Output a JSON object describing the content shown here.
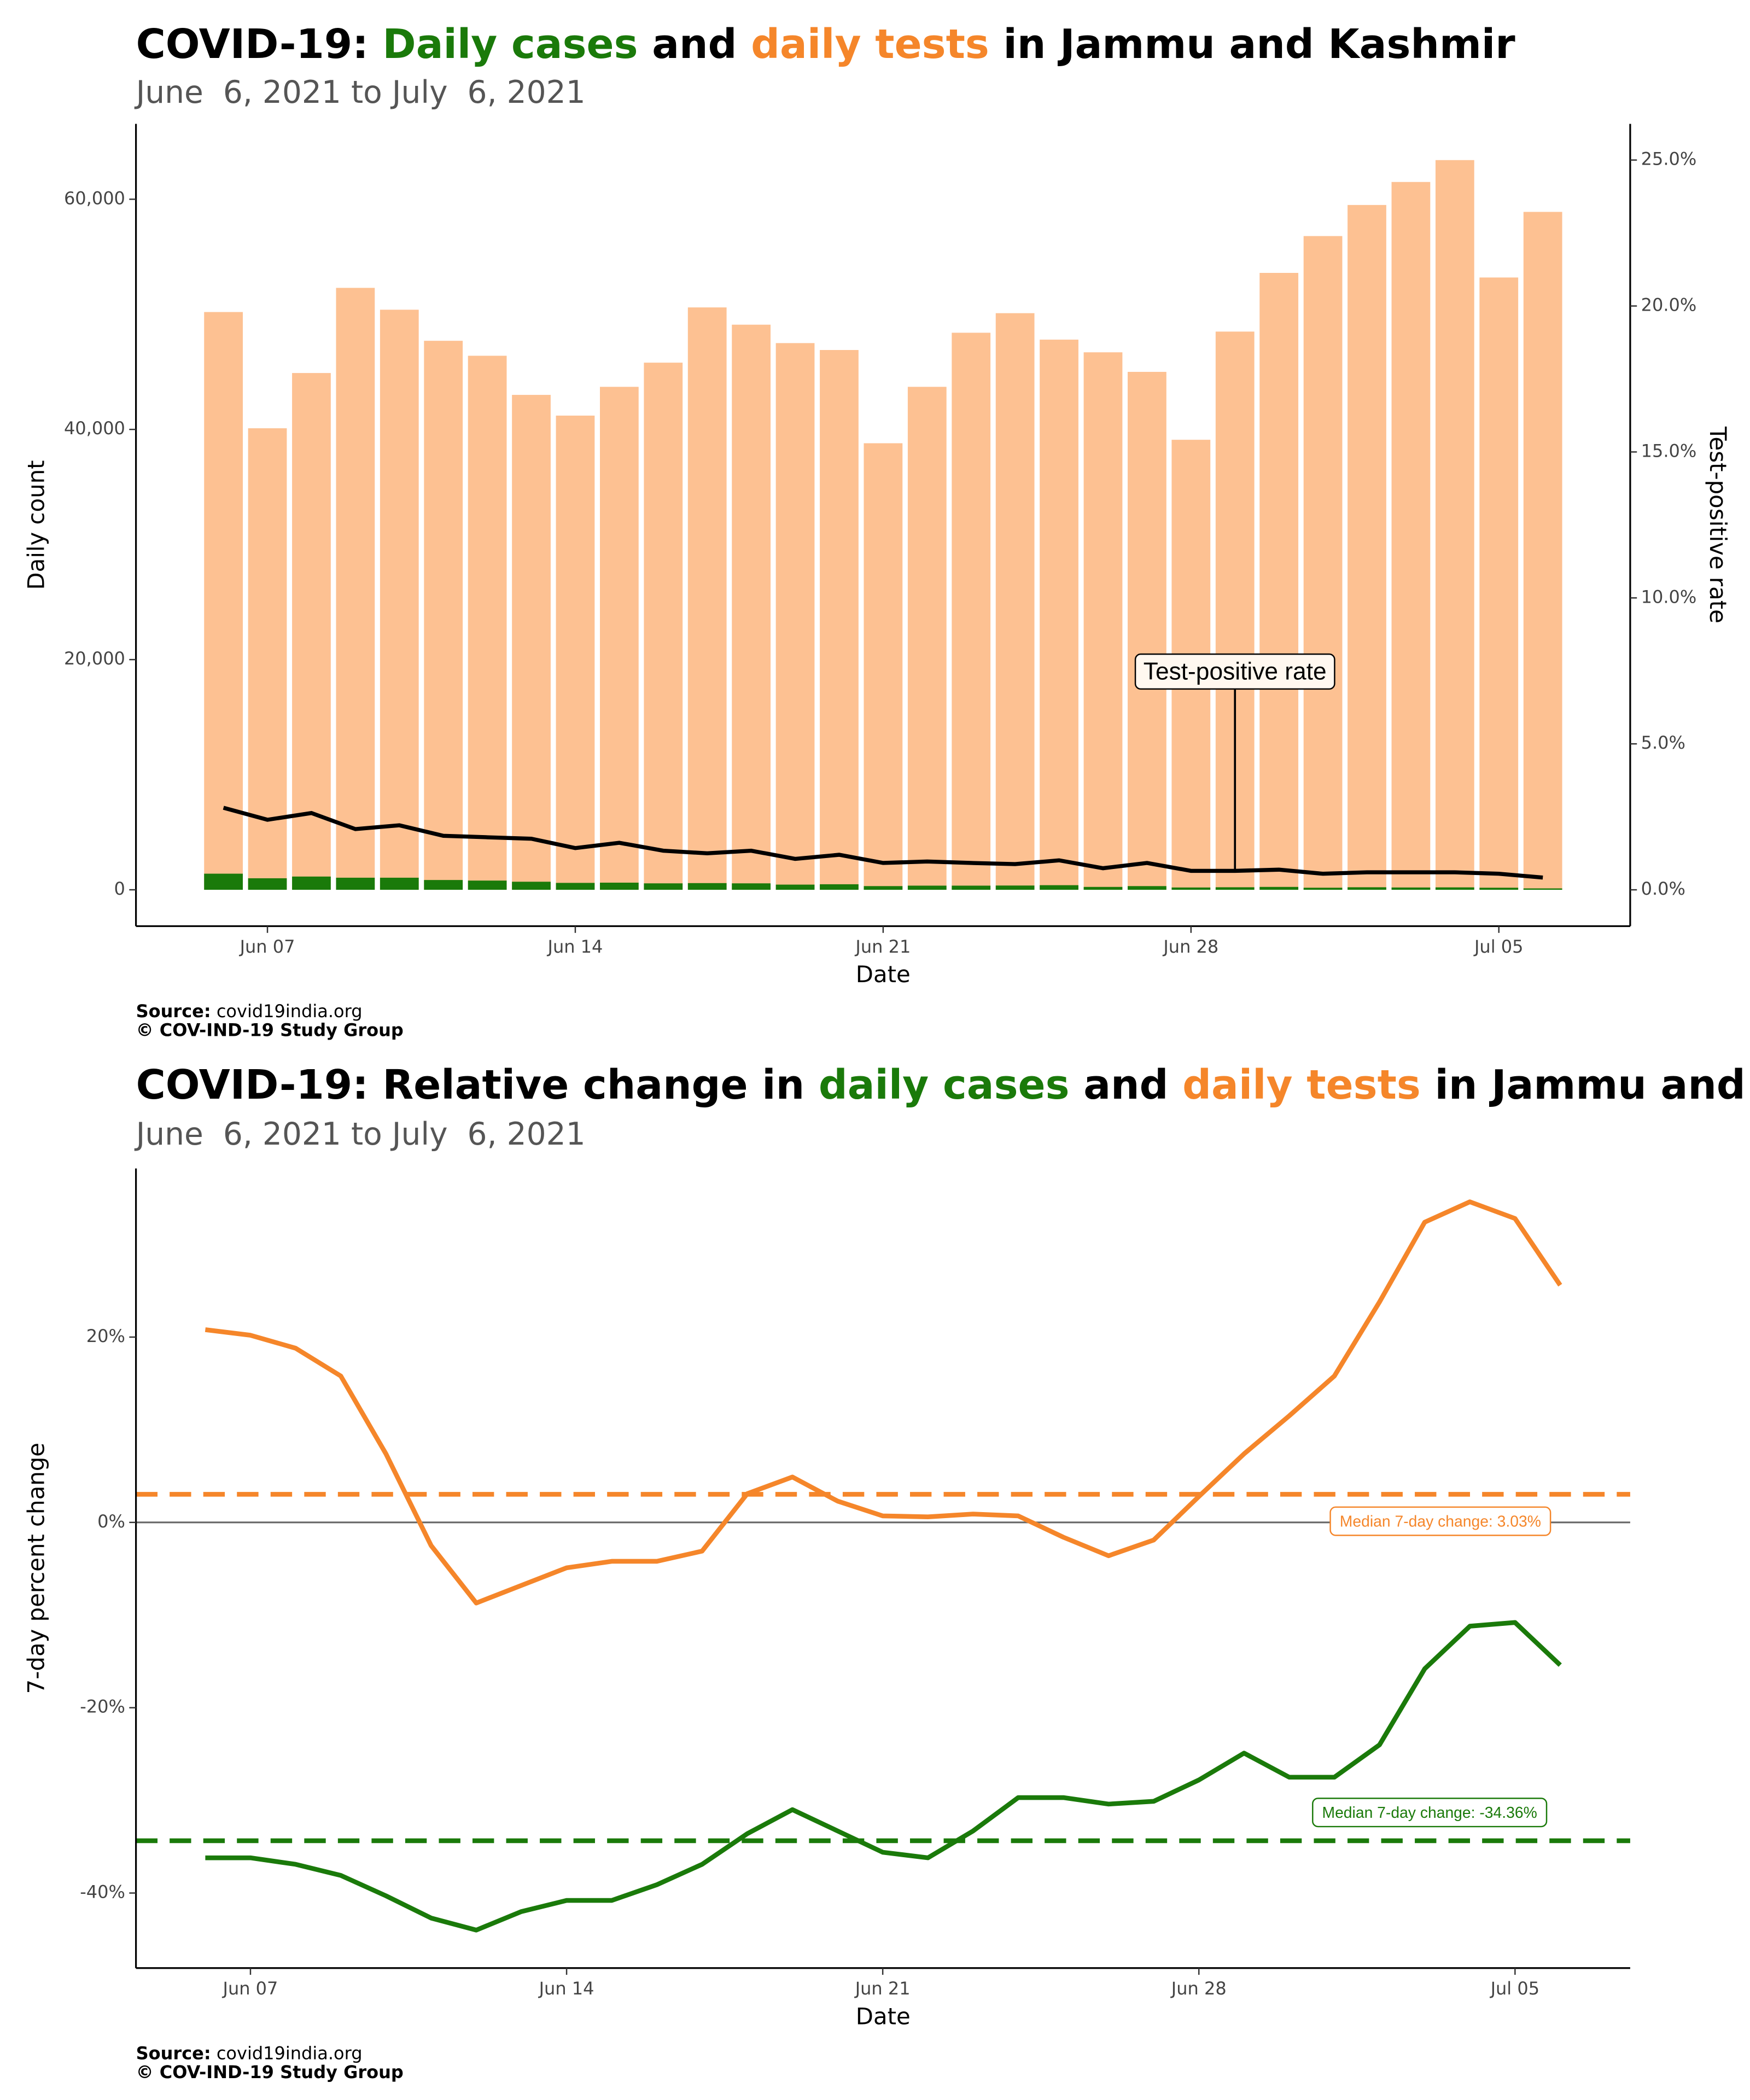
{
  "chart_data": [
    {
      "type": "bar",
      "title_parts": [
        "COVID-19: ",
        "Daily cases",
        " and ",
        "daily tests",
        " in Jammu and Kashmir"
      ],
      "title_colors": [
        "#000000",
        "#1a7a0a",
        "#000000",
        "#f5862a",
        "#000000"
      ],
      "subtitle": "June  6, 2021 to July  6, 2021",
      "x_label": "Date",
      "y_label": "Daily count",
      "y2_label": "Test-positive rate",
      "categories": [
        null,
        "Jun 07",
        null,
        null,
        null,
        null,
        null,
        null,
        "Jun 14",
        null,
        null,
        null,
        null,
        null,
        null,
        "Jun 21",
        null,
        null,
        null,
        null,
        null,
        null,
        "Jun 28",
        null,
        null,
        null,
        null,
        null,
        null,
        "Jul 05",
        null
      ],
      "series": [
        {
          "style": "bar",
          "color": "#fdc192",
          "values": [
            50200,
            40100,
            44900,
            52300,
            50400,
            47700,
            46400,
            43000,
            41200,
            43700,
            45800,
            50600,
            49100,
            47500,
            46900,
            38800,
            43700,
            48400,
            50100,
            47800,
            46700,
            45000,
            39100,
            48500,
            53600,
            56800,
            59500,
            61500,
            63400,
            53200,
            58900
          ]
        },
        {
          "style": "bar",
          "color": "#1a7a0a",
          "values": [
            1400,
            1000,
            1150,
            1050,
            1050,
            850,
            800,
            700,
            600,
            620,
            560,
            580,
            560,
            450,
            480,
            320,
            360,
            360,
            370,
            400,
            250,
            320,
            200,
            220,
            250,
            180,
            220,
            200,
            210,
            180,
            120
          ]
        },
        {
          "style": "line",
          "axis": "y2",
          "color": "#000000",
          "values": [
            2.81,
            2.4,
            2.63,
            2.08,
            2.21,
            1.85,
            1.8,
            1.75,
            1.43,
            1.61,
            1.34,
            1.25,
            1.34,
            1.06,
            1.2,
            0.92,
            0.97,
            0.92,
            0.88,
            1.01,
            0.74,
            0.92,
            0.65,
            0.65,
            0.69,
            0.55,
            0.6,
            0.6,
            0.6,
            0.55,
            0.42
          ]
        }
      ],
      "annotation": "Test-positive rate",
      "ylim": [
        -3160,
        66550
      ],
      "yticks": [
        0,
        {
          "value": 20000,
          "label": "20,000"
        },
        {
          "value": 40000,
          "label": "40,000"
        },
        {
          "value": 60000,
          "label": "60,000"
        }
      ],
      "y2lim": [
        -1.245,
        26.24
      ],
      "y2ticks": [
        {
          "value": 0,
          "label": "0.0%"
        },
        {
          "value": 5,
          "label": "5.0%"
        },
        {
          "value": 10,
          "label": "10.0%"
        },
        {
          "value": 15,
          "label": "15.0%"
        },
        {
          "value": 20,
          "label": "20.0%"
        },
        {
          "value": 25,
          "label": "25.0%"
        }
      ],
      "source_label": "Source:",
      "source": "covid19india.org",
      "credit": "© COV-IND-19 Study Group"
    },
    {
      "type": "line",
      "title_parts": [
        "COVID-19: Relative change in ",
        "daily cases",
        " and ",
        "daily tests",
        " in Jammu and Kashmir"
      ],
      "title_colors": [
        "#000000",
        "#1a7a0a",
        "#000000",
        "#f5862a",
        "#000000"
      ],
      "subtitle": "June  6, 2021 to July  6, 2021",
      "x_label": "Date",
      "y_label": "7-day percent change",
      "categories": [
        null,
        "Jun 07",
        null,
        null,
        null,
        null,
        null,
        null,
        "Jun 14",
        null,
        null,
        null,
        null,
        null,
        null,
        "Jun 21",
        null,
        null,
        null,
        null,
        null,
        null,
        "Jun 28",
        null,
        null,
        null,
        null,
        null,
        null,
        "Jul 05",
        null
      ],
      "series": [
        {
          "color": "#f5862a",
          "values": [
            20.8,
            20.2,
            18.8,
            15.8,
            7.4,
            -2.5,
            -8.7,
            -6.8,
            -4.9,
            -4.2,
            -4.2,
            -3.1,
            3.1,
            4.9,
            2.3,
            0.7,
            0.6,
            0.9,
            0.7,
            -1.6,
            -3.6,
            -1.9,
            2.8,
            7.4,
            11.5,
            15.8,
            23.8,
            32.4,
            34.6,
            32.8,
            25.6
          ]
        },
        {
          "color": "#1a7a0a",
          "values": [
            -36.2,
            -36.2,
            -36.9,
            -38.1,
            -40.3,
            -42.7,
            -44.0,
            -42.0,
            -40.8,
            -40.8,
            -39.1,
            -36.9,
            -33.6,
            -31.0,
            -33.3,
            -35.6,
            -36.2,
            -33.3,
            -29.7,
            -29.7,
            -30.4,
            -30.1,
            -27.8,
            -24.9,
            -27.5,
            -27.5,
            -24.0,
            -15.8,
            -11.2,
            -10.8,
            -15.4
          ]
        }
      ],
      "reference_lines": [
        {
          "value": 3.03,
          "label": "Median 7-day change: 3.03%",
          "color": "#f5862a"
        },
        {
          "value": -34.36,
          "label": "Median 7-day change: -34.36%",
          "color": "#1a7a0a"
        }
      ],
      "zero_line": true,
      "ylim": [
        -48.1,
        38.2
      ],
      "yticks": [
        {
          "value": -40,
          "label": "-40%"
        },
        {
          "value": -20,
          "label": "-20%"
        },
        {
          "value": 0,
          "label": "0%"
        },
        {
          "value": 20,
          "label": "20%"
        }
      ],
      "source_label": "Source:",
      "source": "covid19india.org",
      "credit": "© COV-IND-19 Study Group"
    }
  ]
}
